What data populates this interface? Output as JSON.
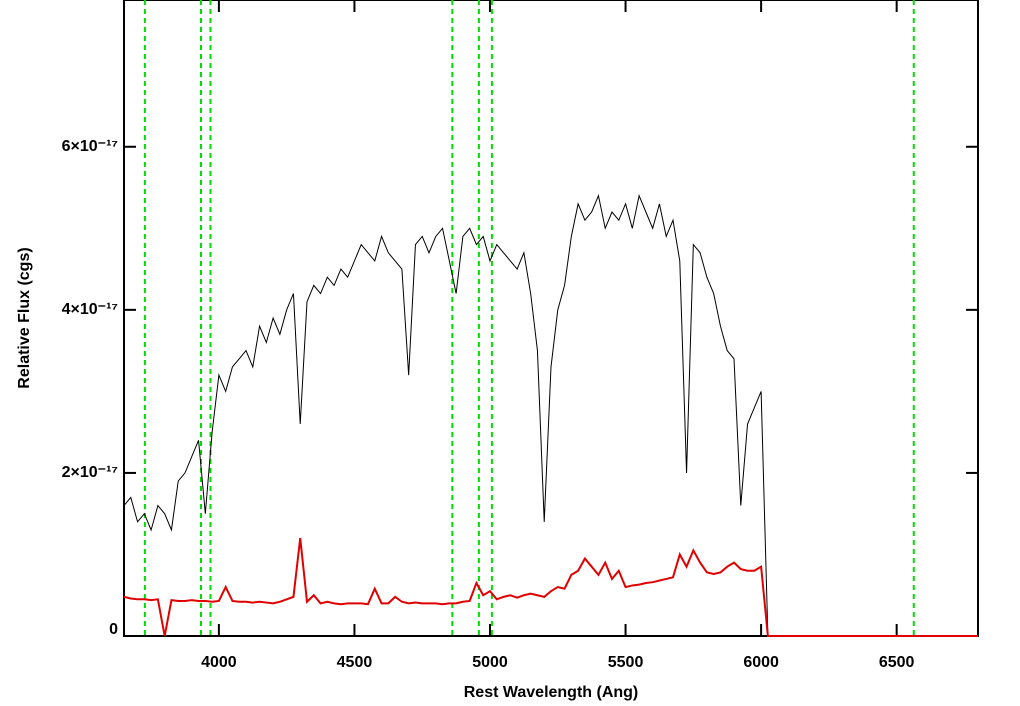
{
  "chart_data": {
    "type": "line",
    "xlabel": "Rest Wavelength (Ang)",
    "ylabel": "Relative Flux (cgs)",
    "xlim": [
      3650,
      6800
    ],
    "ylim": [
      0,
      7.8e-17
    ],
    "xticks": [
      4000,
      4500,
      5000,
      5500,
      6000,
      6500
    ],
    "yticks": [
      0,
      {
        "value": 2e-17,
        "label": "2×10⁻¹⁷"
      },
      {
        "value": 4e-17,
        "label": "4×10⁻¹⁷"
      },
      {
        "value": 6e-17,
        "label": "6×10⁻¹⁷"
      }
    ],
    "vlines": [
      3727,
      3934,
      3969,
      4861,
      4959,
      5007,
      6563
    ],
    "vline_color": "#00dd00",
    "x": [
      3650,
      3675,
      3700,
      3725,
      3750,
      3775,
      3800,
      3825,
      3850,
      3875,
      3900,
      3925,
      3950,
      3975,
      4000,
      4025,
      4050,
      4075,
      4100,
      4125,
      4150,
      4175,
      4200,
      4225,
      4250,
      4275,
      4300,
      4325,
      4350,
      4375,
      4400,
      4425,
      4450,
      4475,
      4500,
      4525,
      4550,
      4575,
      4600,
      4625,
      4650,
      4675,
      4700,
      4725,
      4750,
      4775,
      4800,
      4825,
      4850,
      4875,
      4900,
      4925,
      4950,
      4975,
      5000,
      5025,
      5050,
      5075,
      5100,
      5125,
      5150,
      5175,
      5200,
      5225,
      5250,
      5275,
      5300,
      5325,
      5350,
      5375,
      5400,
      5425,
      5450,
      5475,
      5500,
      5525,
      5550,
      5575,
      5600,
      5625,
      5650,
      5675,
      5700,
      5725,
      5750,
      5775,
      5800,
      5825,
      5850,
      5875,
      5900,
      5925,
      5950,
      5975,
      6000,
      6025,
      6800
    ],
    "series": [
      {
        "color": "#000000",
        "values": [
          1.6e-17,
          1.7e-17,
          1.4e-17,
          1.5e-17,
          1.3e-17,
          1.6e-17,
          1.5e-17,
          1.3e-17,
          1.9e-17,
          2e-17,
          2.2e-17,
          2.4e-17,
          1.5e-17,
          2.5e-17,
          3.2e-17,
          3e-17,
          3.3e-17,
          3.4e-17,
          3.5e-17,
          3.3e-17,
          3.8e-17,
          3.6e-17,
          3.9e-17,
          3.7e-17,
          4e-17,
          4.2e-17,
          2.6e-17,
          4.1e-17,
          4.3e-17,
          4.2e-17,
          4.4e-17,
          4.3e-17,
          4.5e-17,
          4.4e-17,
          4.6e-17,
          4.8e-17,
          4.7e-17,
          4.6e-17,
          4.9e-17,
          4.7e-17,
          4.6e-17,
          4.5e-17,
          3.2e-17,
          4.8e-17,
          4.9e-17,
          4.7e-17,
          4.9e-17,
          5e-17,
          4.6e-17,
          4.2e-17,
          4.9e-17,
          5e-17,
          4.8e-17,
          4.9e-17,
          4.6e-17,
          4.8e-17,
          4.7e-17,
          4.6e-17,
          4.5e-17,
          4.7e-17,
          4.2e-17,
          3.5e-17,
          1.4e-17,
          3.3e-17,
          4e-17,
          4.3e-17,
          4.9e-17,
          5.3e-17,
          5.1e-17,
          5.2e-17,
          5.4e-17,
          5e-17,
          5.2e-17,
          5.1e-17,
          5.3e-17,
          5e-17,
          5.4e-17,
          5.2e-17,
          5e-17,
          5.3e-17,
          4.9e-17,
          5.1e-17,
          4.6e-17,
          2e-17,
          4.8e-17,
          4.7e-17,
          4.4e-17,
          4.2e-17,
          3.8e-17,
          3.5e-17,
          3.4e-17,
          1.6e-17,
          2.6e-17,
          2.8e-17,
          3e-17,
          0,
          0
        ]
      },
      {
        "color": "#e00000",
        "values": [
          4.8e-18,
          4.6e-18,
          4.5e-18,
          4.5e-18,
          4.4e-18,
          4.5e-18,
          0,
          4.4e-18,
          4.3e-18,
          4.3e-18,
          4.4e-18,
          4.3e-18,
          4.3e-18,
          4.2e-18,
          4.3e-18,
          6e-18,
          4.3e-18,
          4.2e-18,
          4.2e-18,
          4.1e-18,
          4.2e-18,
          4.1e-18,
          4e-18,
          4.2e-18,
          4.5e-18,
          4.8e-18,
          1.2e-17,
          4.2e-18,
          5e-18,
          4e-18,
          4.2e-18,
          4e-18,
          3.9e-18,
          4e-18,
          4e-18,
          4e-18,
          3.9e-18,
          5.8e-18,
          4e-18,
          4e-18,
          4.8e-18,
          4.2e-18,
          4e-18,
          4.1e-18,
          4e-18,
          4e-18,
          4e-18,
          3.9e-18,
          4e-18,
          4e-18,
          4.2e-18,
          4.3e-18,
          6.5e-18,
          5e-18,
          5.5e-18,
          4.5e-18,
          4.8e-18,
          5e-18,
          4.7e-18,
          5e-18,
          5.2e-18,
          5e-18,
          4.8e-18,
          5.5e-18,
          6e-18,
          5.8e-18,
          7.5e-18,
          8e-18,
          9.5e-18,
          8.5e-18,
          7.5e-18,
          9e-18,
          7e-18,
          8e-18,
          6e-18,
          6.2e-18,
          6.3e-18,
          6.5e-18,
          6.6e-18,
          6.8e-18,
          7e-18,
          7.2e-18,
          1e-17,
          8.5e-18,
          1.05e-17,
          9e-18,
          7.8e-18,
          7.6e-18,
          7.8e-18,
          8.5e-18,
          9e-18,
          8.2e-18,
          8e-18,
          8e-18,
          8.5e-18,
          0,
          0
        ]
      }
    ]
  }
}
